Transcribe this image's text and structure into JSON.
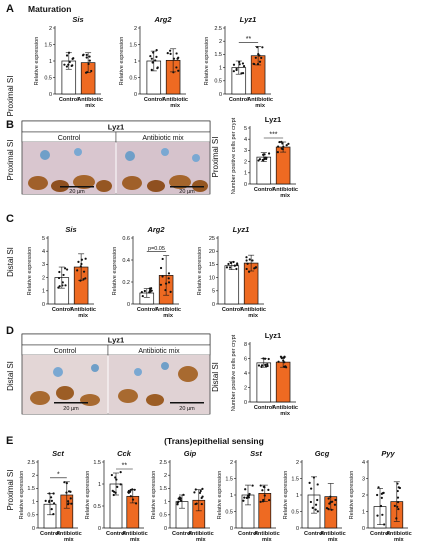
{
  "colors": {
    "control": "#ffffff",
    "antibiotic": "#ee6a22",
    "axis": "#111111"
  },
  "panels": {
    "A": {
      "letter": "A",
      "title": "Maturation",
      "row_label": "Proximal SI",
      "ylabel": "Relative expression",
      "xcat": {
        "control": "Control",
        "antibiotic_1": "Antibiotic",
        "antibiotic_2": "mix"
      },
      "subplots": [
        {
          "title": "Sis",
          "yticks": [
            "0",
            "0.5",
            "1",
            "1.5",
            "2"
          ],
          "ymax": 2,
          "control": 1.0,
          "antibiotic": 0.95,
          "control_err": 0.25,
          "antibiotic_err": 0.3,
          "sig": ""
        },
        {
          "title": "Arg2",
          "yticks": [
            "0",
            "0.5",
            "1",
            "1.5",
            "2"
          ],
          "ymax": 2,
          "control": 1.0,
          "antibiotic": 1.02,
          "control_err": 0.3,
          "antibiotic_err": 0.35,
          "sig": ""
        },
        {
          "title": "Lyz1",
          "yticks": [
            "0",
            "0.5",
            "1",
            "1.5",
            "2",
            "2.5"
          ],
          "ymax": 2.5,
          "control": 1.0,
          "antibiotic": 1.45,
          "control_err": 0.25,
          "antibiotic_err": 0.35,
          "sig": "**"
        }
      ]
    },
    "B": {
      "letter": "B",
      "row_label": "Proximal SI",
      "stain": "Lyz1",
      "cond_control": "Control",
      "cond_antibiotic": "Antibiotic mix",
      "scalebar_1": "20 µm",
      "scalebar_2": "20 µm",
      "chart": {
        "title": "Lyz1",
        "row_label": "Proximal SI",
        "ylabel_1": "Number positive cells per crypt",
        "yticks": [
          "0",
          "1",
          "2",
          "3",
          "4",
          "5"
        ],
        "ymax": 5,
        "control": 2.4,
        "antibiotic": 3.3,
        "control_err": 0.4,
        "antibiotic_err": 0.45,
        "sig": "***"
      }
    },
    "C": {
      "letter": "C",
      "row_label": "Distal SI",
      "ylabel": "Relative expression",
      "subplots": [
        {
          "title": "Sis",
          "yticks": [
            "0",
            "1",
            "2",
            "3",
            "4",
            "5"
          ],
          "ymax": 5,
          "control": 2.0,
          "antibiotic": 2.8,
          "control_err": 0.8,
          "antibiotic_err": 1.0,
          "sig": ""
        },
        {
          "title": "Arg2",
          "yticks": [
            "0",
            "0.2",
            "0.4",
            "0.6"
          ],
          "ymax": 0.6,
          "control": 0.1,
          "antibiotic": 0.26,
          "control_err": 0.04,
          "antibiotic_err": 0.18,
          "sig": "p=0.05"
        },
        {
          "title": "Lyz1",
          "yticks": [
            "0",
            "5",
            "10",
            "15",
            "20",
            "25"
          ],
          "ymax": 25,
          "control": 14.5,
          "antibiotic": 15.5,
          "control_err": 1.5,
          "antibiotic_err": 3.0,
          "sig": ""
        }
      ]
    },
    "D": {
      "letter": "D",
      "row_label": "Distal SI",
      "stain": "Lyz1",
      "cond_control": "Control",
      "cond_antibiotic": "Antibiotic mix",
      "scalebar_1": "20 µm",
      "scalebar_2": "20 µm",
      "chart": {
        "title": "Lyz1",
        "row_label": "Distal SI",
        "ylabel_1": "Number positive cells per crypt",
        "yticks": [
          "0",
          "2",
          "4",
          "6",
          "8"
        ],
        "ymax": 8,
        "control": 5.4,
        "antibiotic": 5.5,
        "control_err": 0.6,
        "antibiotic_err": 0.7,
        "sig": ""
      }
    },
    "E": {
      "letter": "E",
      "title": "(Trans)epithelial sensing",
      "row_label": "Proximal SI",
      "ylabel": "Relative expression",
      "subplots": [
        {
          "title": "Sct",
          "yticks": [
            "0",
            "0.5",
            "1",
            "1.5",
            "2",
            "2.5"
          ],
          "ymax": 2.5,
          "control": 0.9,
          "antibiotic": 1.25,
          "control_err": 0.4,
          "antibiotic_err": 0.5,
          "sig": "*"
        },
        {
          "title": "Cck",
          "yticks": [
            "0",
            "0.5",
            "1",
            "1.5"
          ],
          "ymax": 1.5,
          "control": 1.0,
          "antibiotic": 0.72,
          "control_err": 0.25,
          "antibiotic_err": 0.15,
          "sig": "**"
        },
        {
          "title": "Gip",
          "yticks": [
            "0",
            "0.5",
            "1",
            "1.5",
            "2",
            "2.5"
          ],
          "ymax": 2.5,
          "control": 1.0,
          "antibiotic": 1.05,
          "control_err": 0.25,
          "antibiotic_err": 0.4,
          "sig": ""
        },
        {
          "title": "Sst",
          "yticks": [
            "0",
            "0.5",
            "1",
            "1.5",
            "2"
          ],
          "ymax": 2,
          "control": 1.0,
          "antibiotic": 1.05,
          "control_err": 0.3,
          "antibiotic_err": 0.25,
          "sig": ""
        },
        {
          "title": "Gcg",
          "yticks": [
            "0",
            "0.5",
            "1",
            "1.5",
            "2"
          ],
          "ymax": 2,
          "control": 1.0,
          "antibiotic": 0.95,
          "control_err": 0.55,
          "antibiotic_err": 0.4,
          "sig": ""
        },
        {
          "title": "Pyy",
          "yticks": [
            "0",
            "1",
            "2",
            "3",
            "4"
          ],
          "ymax": 4,
          "control": 1.3,
          "antibiotic": 1.6,
          "control_err": 1.1,
          "antibiotic_err": 1.2,
          "sig": ""
        }
      ]
    }
  },
  "chart_data": [
    {
      "type": "bar",
      "panel": "A",
      "title": "Sis",
      "categories": [
        "Control",
        "Antibiotic mix"
      ],
      "values": [
        1.0,
        0.95
      ],
      "ylabel": "Relative expression",
      "ylim": [
        0,
        2
      ]
    },
    {
      "type": "bar",
      "panel": "A",
      "title": "Arg2",
      "categories": [
        "Control",
        "Antibiotic mix"
      ],
      "values": [
        1.0,
        1.02
      ],
      "ylabel": "Relative expression",
      "ylim": [
        0,
        2
      ]
    },
    {
      "type": "bar",
      "panel": "A",
      "title": "Lyz1",
      "categories": [
        "Control",
        "Antibiotic mix"
      ],
      "values": [
        1.0,
        1.45
      ],
      "ylabel": "Relative expression",
      "ylim": [
        0,
        2.5
      ]
    },
    {
      "type": "bar",
      "panel": "B",
      "title": "Lyz1",
      "categories": [
        "Control",
        "Antibiotic mix"
      ],
      "values": [
        2.4,
        3.3
      ],
      "ylabel": "Number positive cells per crypt",
      "ylim": [
        0,
        5
      ]
    },
    {
      "type": "bar",
      "panel": "C",
      "title": "Sis",
      "categories": [
        "Control",
        "Antibiotic mix"
      ],
      "values": [
        2.0,
        2.8
      ],
      "ylabel": "Relative expression",
      "ylim": [
        0,
        5
      ]
    },
    {
      "type": "bar",
      "panel": "C",
      "title": "Arg2",
      "categories": [
        "Control",
        "Antibiotic mix"
      ],
      "values": [
        0.1,
        0.26
      ],
      "ylabel": "Relative expression",
      "ylim": [
        0,
        0.6
      ]
    },
    {
      "type": "bar",
      "panel": "C",
      "title": "Lyz1",
      "categories": [
        "Control",
        "Antibiotic mix"
      ],
      "values": [
        14.5,
        15.5
      ],
      "ylabel": "Relative expression",
      "ylim": [
        0,
        25
      ]
    },
    {
      "type": "bar",
      "panel": "D",
      "title": "Lyz1",
      "categories": [
        "Control",
        "Antibiotic mix"
      ],
      "values": [
        5.4,
        5.5
      ],
      "ylabel": "Number positive cells per crypt",
      "ylim": [
        0,
        8
      ]
    },
    {
      "type": "bar",
      "panel": "E",
      "title": "Sct",
      "categories": [
        "Control",
        "Antibiotic mix"
      ],
      "values": [
        0.9,
        1.25
      ],
      "ylabel": "Relative expression",
      "ylim": [
        0,
        2.5
      ]
    },
    {
      "type": "bar",
      "panel": "E",
      "title": "Cck",
      "categories": [
        "Control",
        "Antibiotic mix"
      ],
      "values": [
        1.0,
        0.72
      ],
      "ylabel": "Relative expression",
      "ylim": [
        0,
        1.5
      ]
    },
    {
      "type": "bar",
      "panel": "E",
      "title": "Gip",
      "categories": [
        "Control",
        "Antibiotic mix"
      ],
      "values": [
        1.0,
        1.05
      ],
      "ylabel": "Relative expression",
      "ylim": [
        0,
        2.5
      ]
    },
    {
      "type": "bar",
      "panel": "E",
      "title": "Sst",
      "categories": [
        "Control",
        "Antibiotic mix"
      ],
      "values": [
        1.0,
        1.05
      ],
      "ylabel": "Relative expression",
      "ylim": [
        0,
        2
      ]
    },
    {
      "type": "bar",
      "panel": "E",
      "title": "Gcg",
      "categories": [
        "Control",
        "Antibiotic mix"
      ],
      "values": [
        1.0,
        0.95
      ],
      "ylabel": "Relative expression",
      "ylim": [
        0,
        2
      ]
    },
    {
      "type": "bar",
      "panel": "E",
      "title": "Pyy",
      "categories": [
        "Control",
        "Antibiotic mix"
      ],
      "values": [
        1.3,
        1.6
      ],
      "ylabel": "Relative expression",
      "ylim": [
        0,
        4
      ]
    }
  ]
}
